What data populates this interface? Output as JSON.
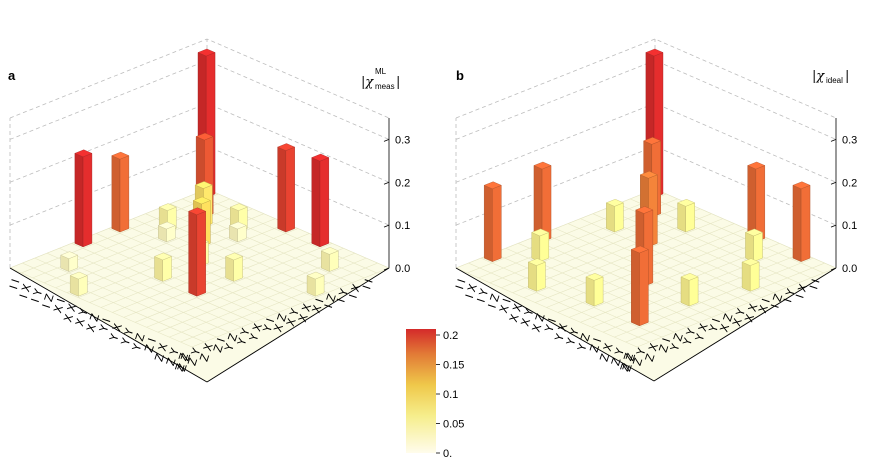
{
  "chart_data": [
    {
      "panel": "a",
      "type": "bar3d",
      "title": "|χ_meas^ML|",
      "title_symbol": "χ",
      "title_sup": "ML",
      "title_sub": "meas",
      "zlim": [
        0,
        0.35
      ],
      "z_ticks": [
        "0.0",
        "0.1",
        "0.2",
        "0.3"
      ],
      "bars": [
        {
          "row": 0,
          "col": 0,
          "value": 0.33
        },
        {
          "row": 2,
          "col": 2,
          "value": 0.18
        },
        {
          "row": 5,
          "col": 5,
          "value": 0.1
        },
        {
          "row": 3,
          "col": 3,
          "value": 0.09
        },
        {
          "row": 0,
          "col": 7,
          "value": 0.19
        },
        {
          "row": 7,
          "col": 0,
          "value": 0.17
        },
        {
          "row": 0,
          "col": 10,
          "value": 0.2
        },
        {
          "row": 10,
          "col": 0,
          "value": 0.21
        },
        {
          "row": 10,
          "col": 10,
          "value": 0.19
        },
        {
          "row": 2,
          "col": 5,
          "value": 0.05
        },
        {
          "row": 5,
          "col": 2,
          "value": 0.05
        },
        {
          "row": 7,
          "col": 7,
          "value": 0.05
        },
        {
          "row": 7,
          "col": 10,
          "value": 0.05
        },
        {
          "row": 10,
          "col": 7,
          "value": 0.05
        },
        {
          "row": 3,
          "col": 6,
          "value": 0.03
        },
        {
          "row": 6,
          "col": 3,
          "value": 0.03
        },
        {
          "row": 2,
          "col": 13,
          "value": 0.04
        },
        {
          "row": 13,
          "col": 2,
          "value": 0.03
        },
        {
          "row": 5,
          "col": 15,
          "value": 0.04
        },
        {
          "row": 15,
          "col": 5,
          "value": 0.04
        }
      ]
    },
    {
      "panel": "b",
      "type": "bar3d",
      "title": "|χ_ideal|",
      "title_symbol": "χ",
      "title_sup": "",
      "title_sub": "ideal",
      "zlim": [
        0,
        0.35
      ],
      "z_ticks": [
        "0.0",
        "0.1",
        "0.2",
        "0.3"
      ],
      "bars": [
        {
          "row": 0,
          "col": 0,
          "value": 0.33
        },
        {
          "row": 2,
          "col": 2,
          "value": 0.17
        },
        {
          "row": 5,
          "col": 5,
          "value": 0.16
        },
        {
          "row": 0,
          "col": 9,
          "value": 0.17
        },
        {
          "row": 9,
          "col": 0,
          "value": 0.17
        },
        {
          "row": 0,
          "col": 13,
          "value": 0.17
        },
        {
          "row": 13,
          "col": 0,
          "value": 0.17
        },
        {
          "row": 9,
          "col": 9,
          "value": 0.17
        },
        {
          "row": 13,
          "col": 13,
          "value": 0.17
        },
        {
          "row": 2,
          "col": 5,
          "value": 0.06
        },
        {
          "row": 5,
          "col": 2,
          "value": 0.06
        },
        {
          "row": 9,
          "col": 13,
          "value": 0.06
        },
        {
          "row": 13,
          "col": 9,
          "value": 0.06
        },
        {
          "row": 2,
          "col": 11,
          "value": 0.06
        },
        {
          "row": 11,
          "col": 2,
          "value": 0.06
        },
        {
          "row": 5,
          "col": 14,
          "value": 0.06
        },
        {
          "row": 14,
          "col": 5,
          "value": 0.06
        }
      ]
    }
  ],
  "axis_labels": [
    "I I",
    "I X",
    "I Y",
    "I Z",
    "X I",
    "X X",
    "X Y",
    "X Z",
    "Y I",
    "Y X",
    "Y Y",
    "Y Z",
    "Z I",
    "Z X",
    "Z Y",
    "Z Z"
  ],
  "colorbar": {
    "range": [
      0,
      0.2
    ],
    "ticks": [
      "0.",
      "0.05",
      "0.1",
      "0.15",
      "0.2"
    ],
    "colors": {
      "low": "#fffbe8",
      "mid1": "#f2e84a",
      "mid2": "#e9a33d",
      "high": "#d42a2a"
    }
  }
}
